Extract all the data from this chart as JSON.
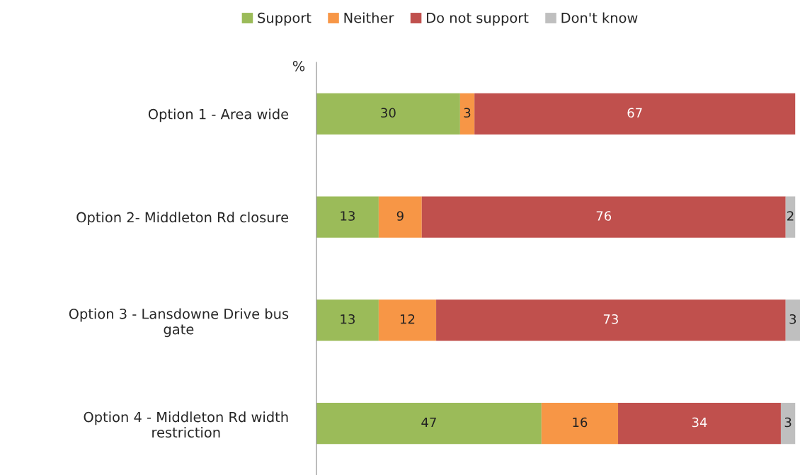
{
  "chart_data": {
    "type": "bar",
    "orientation": "horizontal",
    "stacked": true,
    "data_labels": true,
    "relative": false,
    "grid": false,
    "legend": "top",
    "xlabel": "%",
    "categories": [
      "Option 1 - Area wide",
      "Option 2- Middleton Rd closure",
      "Option 3 - Lansdowne Drive bus\ngate",
      "Option 4 - Middleton Rd width\nrestriction"
    ],
    "xlim": [
      0,
      101
    ],
    "series": [
      {
        "name": "Support",
        "color": "#9bbb59",
        "values": [
          30,
          13,
          13,
          47
        ]
      },
      {
        "name": "Neither",
        "color": "#f79646",
        "values": [
          3,
          9,
          12,
          16
        ]
      },
      {
        "name": "Do not support",
        "color": "#c0504d",
        "values": [
          67,
          76,
          73,
          34
        ]
      },
      {
        "name": "Don't know",
        "color": "#bfbfbf",
        "values": [
          null,
          2,
          3,
          3
        ]
      }
    ]
  }
}
